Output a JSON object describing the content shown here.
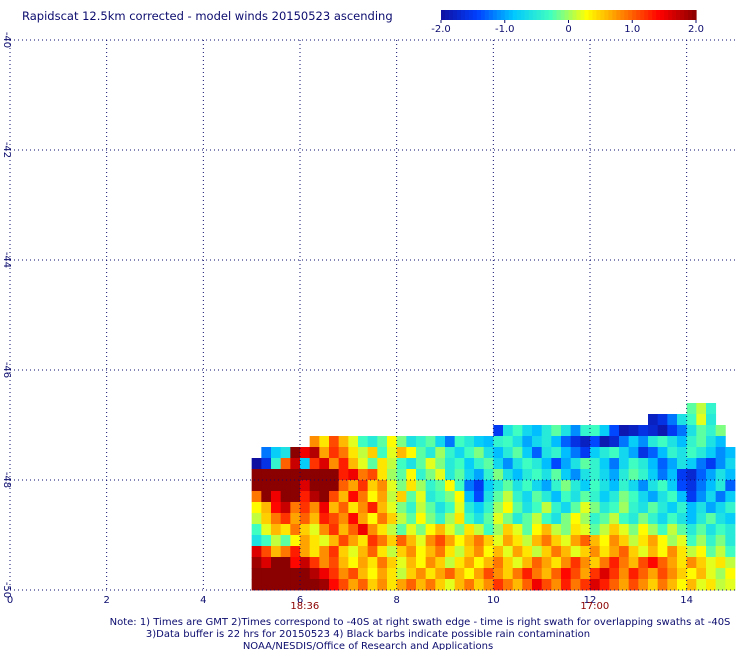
{
  "chart_data": {
    "type": "heatmap",
    "title": "Rapidscat 12.5km corrected - model winds 20150523 ascending",
    "colorbar": {
      "range": [
        -2.0,
        2.0
      ],
      "ticks": [
        "-2.0",
        "-1.0",
        "0",
        "1.0",
        "2.0"
      ],
      "palette": [
        "#1010a0",
        "#0040ff",
        "#00c8ff",
        "#40ffc0",
        "#ffff00",
        "#ff8000",
        "#ff0000",
        "#8b0000"
      ]
    },
    "xlim": [
      0,
      15
    ],
    "ylim": [
      -50,
      -40
    ],
    "xticks": [
      "0",
      "2",
      "4",
      "6",
      "8",
      "10",
      "12",
      "14"
    ],
    "yticks": [
      "-40",
      "-42",
      "-44",
      "-46",
      "-48",
      "-50"
    ],
    "time_labels": [
      {
        "x": 6.1,
        "text": "18:36"
      },
      {
        "x": 12.1,
        "text": "17:00"
      }
    ],
    "grid": true,
    "swath": {
      "west_edge": 5.0,
      "rows": [
        {
          "lat": -46.8,
          "lon_start": 14.0,
          "values": [
            -0.2,
            0.1,
            -0.4
          ]
        },
        {
          "lat": -47.0,
          "lon_start": 13.2,
          "values": [
            -1.8,
            -1.6,
            -1.2,
            -0.6,
            -0.3,
            0.2,
            -0.5
          ]
        },
        {
          "lat": -47.2,
          "lon_start": 10.0,
          "values": [
            -1.5,
            -0.6,
            -0.3,
            -0.7,
            -0.9,
            -0.5,
            -0.2,
            -0.6,
            -1.1,
            -0.4,
            -0.3,
            -0.8,
            -1.4,
            -1.9,
            -1.8,
            -1.6,
            -1.7,
            -1.9,
            -1.5,
            -1.2,
            -0.6,
            -0.2,
            -0.4,
            -0.1
          ]
        },
        {
          "lat": -47.4,
          "lon_start": 6.2,
          "values": [
            0.8,
            0.4,
            1.1,
            0.6,
            0.2,
            -0.3,
            -0.5,
            -0.2,
            0.3,
            -0.1,
            -0.6,
            -0.4,
            -0.2,
            -0.7,
            -1.2,
            -0.3,
            -0.5,
            -0.8,
            -0.9,
            -0.4,
            -0.3,
            -0.6,
            -1.0,
            -0.7,
            -0.5,
            -0.9,
            -1.3,
            -1.6,
            -1.8,
            -1.4,
            -1.9,
            -1.7,
            -1.2,
            -0.8,
            -1.1,
            -0.5,
            -0.3,
            -0.6,
            -0.9,
            -0.4,
            -0.2,
            -0.6,
            -0.9
          ]
        },
        {
          "lat": -47.6,
          "lon_start": 5.2,
          "values": [
            -1.2,
            -0.8,
            -0.6,
            2.0,
            1.5,
            1.8,
            0.7,
            1.2,
            0.9,
            0.4,
            0.1,
            0.5,
            -0.3,
            0.2,
            0.6,
            0.3,
            -0.2,
            -0.5,
            0.0,
            -0.4,
            -0.7,
            -0.3,
            -0.1,
            -0.6,
            -0.9,
            -0.5,
            -0.2,
            -0.8,
            -1.3,
            -0.6,
            -0.4,
            -0.9,
            -1.2,
            -1.5,
            -0.8,
            -0.5,
            -0.3,
            -0.7,
            -1.0,
            -1.6,
            -1.3,
            -0.9,
            -0.4,
            -0.6,
            -0.3,
            -0.5,
            -0.8,
            -1.1,
            -0.9
          ]
        },
        {
          "lat": -47.8,
          "lon_start": 5.0,
          "values": [
            -2.0,
            -1.6,
            -0.4,
            1.0,
            1.7,
            -0.8,
            1.2,
            1.6,
            0.8,
            1.3,
            0.6,
            0.2,
            -0.2,
            0.4,
            0.1,
            -0.3,
            -0.6,
            -0.2,
            0.2,
            -0.1,
            -0.5,
            -0.3,
            -0.8,
            -0.4,
            -0.2,
            -0.7,
            -1.1,
            -0.6,
            -0.3,
            -0.5,
            -0.9,
            -1.4,
            -1.0,
            -0.6,
            -0.2,
            -0.4,
            -0.8,
            -1.2,
            -0.7,
            -0.3,
            -0.5,
            -0.9,
            -1.3,
            -1.0,
            -0.6,
            -0.8,
            -1.2,
            -1.5,
            -1.1,
            -0.7
          ]
        },
        {
          "lat": -48.0,
          "lon_start": 5.0,
          "values": [
            2.0,
            2.0,
            2.0,
            2.0,
            2.0,
            2.0,
            2.0,
            2.0,
            2.0,
            1.3,
            1.5,
            0.9,
            1.1,
            0.4,
            0.0,
            -0.2,
            0.3,
            -0.4,
            -0.1,
            0.2,
            -0.5,
            -0.2,
            -0.7,
            -1.0,
            -0.4,
            -0.1,
            -0.6,
            -0.9,
            -0.5,
            -0.3,
            -0.6,
            -0.2,
            -0.8,
            -1.1,
            -0.6,
            -0.4,
            -0.7,
            -1.0,
            -0.5,
            -0.2,
            -0.4,
            -0.8,
            -1.2,
            -0.9,
            -1.5,
            -1.7,
            -1.3,
            -1.0,
            -0.6,
            -0.9
          ]
        },
        {
          "lat": -48.2,
          "lon_start": 5.0,
          "values": [
            2.0,
            2.0,
            2.0,
            2.0,
            2.0,
            1.6,
            2.0,
            2.0,
            2.0,
            1.0,
            0.7,
            1.2,
            0.5,
            0.8,
            0.2,
            -0.1,
            0.4,
            0.0,
            -0.4,
            -0.2,
            0.3,
            -0.3,
            -1.2,
            -1.5,
            -0.8,
            -0.5,
            -0.2,
            -0.6,
            -0.3,
            -0.7,
            -1.0,
            -0.4,
            -0.1,
            -0.5,
            -0.8,
            -0.3,
            -0.6,
            -0.9,
            -0.4,
            -0.7,
            -1.1,
            -0.6,
            -0.3,
            -0.8,
            -1.4,
            -1.6,
            -1.2,
            -0.9,
            -0.5,
            -1.3
          ]
        },
        {
          "lat": -48.4,
          "lon_start": 5.0,
          "values": [
            0.9,
            2.0,
            1.5,
            2.0,
            2.0,
            1.3,
            1.8,
            2.0,
            1.1,
            0.6,
            1.4,
            0.9,
            0.3,
            0.7,
            0.1,
            0.5,
            -0.2,
            0.2,
            -0.5,
            -0.3,
            -0.1,
            0.3,
            -0.9,
            -1.4,
            -0.6,
            -0.2,
            0.1,
            -0.4,
            -0.7,
            -0.2,
            -0.5,
            -0.9,
            -0.3,
            -0.6,
            -0.2,
            -0.4,
            -0.8,
            -0.5,
            -0.1,
            -0.3,
            -0.7,
            -1.0,
            -0.6,
            -0.3,
            -0.9,
            -1.5,
            -1.1,
            -0.7,
            -1.2,
            -0.8
          ]
        },
        {
          "lat": -48.6,
          "lon_start": 5.0,
          "values": [
            0.3,
            0.6,
            1.4,
            1.7,
            0.9,
            1.2,
            0.8,
            1.5,
            0.6,
            1.0,
            0.4,
            0.8,
            1.3,
            0.6,
            0.2,
            -0.1,
            -0.4,
            0.1,
            -0.2,
            -0.6,
            -0.3,
            0.2,
            -0.5,
            -0.8,
            -0.4,
            0.0,
            0.3,
            -0.2,
            -0.6,
            -0.3,
            0.1,
            -0.4,
            -0.7,
            -0.2,
            0.2,
            -0.1,
            -0.5,
            -0.3,
            0.0,
            -0.4,
            -0.6,
            -0.2,
            -0.5,
            -0.8,
            -0.4,
            -0.9,
            -0.6,
            -1.0,
            -0.7,
            -0.4
          ]
        },
        {
          "lat": -48.8,
          "lon_start": 5.0,
          "values": [
            0.1,
            0.5,
            0.9,
            1.2,
            0.7,
            1.0,
            0.6,
            1.3,
            1.1,
            0.8,
            1.4,
            0.7,
            0.3,
            0.9,
            0.5,
            0.1,
            -0.2,
            0.3,
            -0.1,
            -0.4,
            0.0,
            0.4,
            -0.3,
            -0.6,
            -0.2,
            0.2,
            -0.1,
            -0.5,
            -0.2,
            0.1,
            -0.3,
            -0.6,
            -0.1,
            0.3,
            0.0,
            -0.4,
            -0.2,
            0.1,
            -0.3,
            -0.5,
            -0.1,
            -0.4,
            -0.7,
            -0.3,
            -0.6,
            -0.9,
            -0.5,
            -0.2,
            -0.6,
            -0.8
          ]
        },
        {
          "lat": -49.0,
          "lon_start": 5.0,
          "values": [
            -0.3,
            0.2,
            0.6,
            0.4,
            0.9,
            0.5,
            0.2,
            0.8,
            1.2,
            0.6,
            1.0,
            1.5,
            0.8,
            0.4,
            0.1,
            -0.2,
            0.2,
            -0.1,
            0.3,
            0.6,
            0.2,
            -0.1,
            0.4,
            0.1,
            -0.3,
            0.0,
            0.5,
            0.2,
            -0.2,
            0.3,
            0.6,
            0.1,
            -0.1,
            0.4,
            0.2,
            -0.2,
            0.1,
            0.5,
            0.2,
            -0.1,
            0.3,
            0.0,
            -0.3,
            0.1,
            -0.2,
            -0.5,
            -0.2,
            -0.6,
            -0.3,
            -0.5
          ]
        },
        {
          "lat": -49.2,
          "lon_start": 5.0,
          "values": [
            -0.6,
            -0.3,
            0.1,
            -0.2,
            0.3,
            0.7,
            0.4,
            0.2,
            0.6,
            1.1,
            0.7,
            0.4,
            1.2,
            0.9,
            0.5,
            1.0,
            0.6,
            0.2,
            0.8,
            1.1,
            0.7,
            0.3,
            0.6,
            0.9,
            0.5,
            0.2,
            0.7,
            0.4,
            0.1,
            0.6,
            0.9,
            0.5,
            0.2,
            0.7,
            1.0,
            0.6,
            0.3,
            0.8,
            0.5,
            0.1,
            0.4,
            0.7,
            0.3,
            0.0,
            0.2,
            -0.3,
            0.0,
            -0.4,
            -0.1,
            -0.5
          ]
        },
        {
          "lat": -49.4,
          "lon_start": 5.0,
          "values": [
            1.6,
            1.1,
            0.6,
            0.9,
            1.3,
            0.7,
            0.4,
            0.8,
            1.2,
            0.5,
            0.2,
            0.6,
            1.0,
            0.4,
            0.1,
            0.5,
            0.8,
            0.3,
            0.6,
            0.9,
            0.4,
            0.1,
            0.5,
            0.8,
            0.3,
            0.6,
            0.2,
            0.7,
            0.4,
            0.1,
            0.5,
            0.9,
            0.6,
            0.2,
            0.5,
            0.8,
            0.4,
            0.7,
            1.0,
            0.5,
            0.2,
            0.6,
            0.3,
            0.8,
            0.4,
            0.1,
            0.3,
            -0.2,
            0.1,
            -0.3
          ]
        },
        {
          "lat": -49.6,
          "lon_start": 5.0,
          "values": [
            1.9,
            1.6,
            2.0,
            2.0,
            1.4,
            1.7,
            1.2,
            0.8,
            1.1,
            0.6,
            0.3,
            0.7,
            0.4,
            0.9,
            0.5,
            0.2,
            0.6,
            0.3,
            0.8,
            0.5,
            0.1,
            0.4,
            0.7,
            0.3,
            0.6,
            0.9,
            0.5,
            0.2,
            0.6,
            1.0,
            0.7,
            0.4,
            0.8,
            1.2,
            0.8,
            0.5,
            0.9,
            1.3,
            0.9,
            0.6,
            1.1,
            1.4,
            1.0,
            0.7,
            0.4,
            0.8,
            0.5,
            0.2,
            0.4,
            0.1
          ]
        },
        {
          "lat": -49.8,
          "lon_start": 5.0,
          "values": [
            2.0,
            2.0,
            2.0,
            2.0,
            2.0,
            2.0,
            1.8,
            1.5,
            1.2,
            0.8,
            1.1,
            0.6,
            0.3,
            0.7,
            0.4,
            0.1,
            0.5,
            0.8,
            0.4,
            0.7,
            1.0,
            0.6,
            0.3,
            0.7,
            1.1,
            0.8,
            0.5,
            0.9,
            1.3,
            0.9,
            0.6,
            1.0,
            1.4,
            1.1,
            0.7,
            1.2,
            1.6,
            1.2,
            0.8,
            1.3,
            1.0,
            0.7,
            1.1,
            0.8,
            0.5,
            0.3,
            0.6,
            0.2,
            0.0,
            0.3
          ]
        },
        {
          "lat": -50.0,
          "lon_start": 5.0,
          "values": [
            2.0,
            2.0,
            2.0,
            2.0,
            2.0,
            2.0,
            2.0,
            1.9,
            1.4,
            1.1,
            0.7,
            1.0,
            0.5,
            0.8,
            0.4,
            0.7,
            1.0,
            0.6,
            0.9,
            0.5,
            0.2,
            0.6,
            0.9,
            0.5,
            0.8,
            1.2,
            0.9,
            0.6,
            1.0,
            1.5,
            1.1,
            0.8,
            1.3,
            0.9,
            1.2,
            1.6,
            1.3,
            1.0,
            0.7,
            1.1,
            0.8,
            0.5,
            0.9,
            0.6,
            0.3,
            0.6,
            0.2,
            0.4,
            0.1,
            0.2
          ]
        }
      ]
    },
    "notes": [
      "Note: 1) Times are GMT 2)Times correspond to -40S at right swath edge - time is right swath for overlapping swaths at -40S",
      "3)Data buffer is 22 hrs for 20150523 4) Black barbs indicate possible rain contamination",
      "NOAA/NESDIS/Office of Research and Applications"
    ]
  }
}
